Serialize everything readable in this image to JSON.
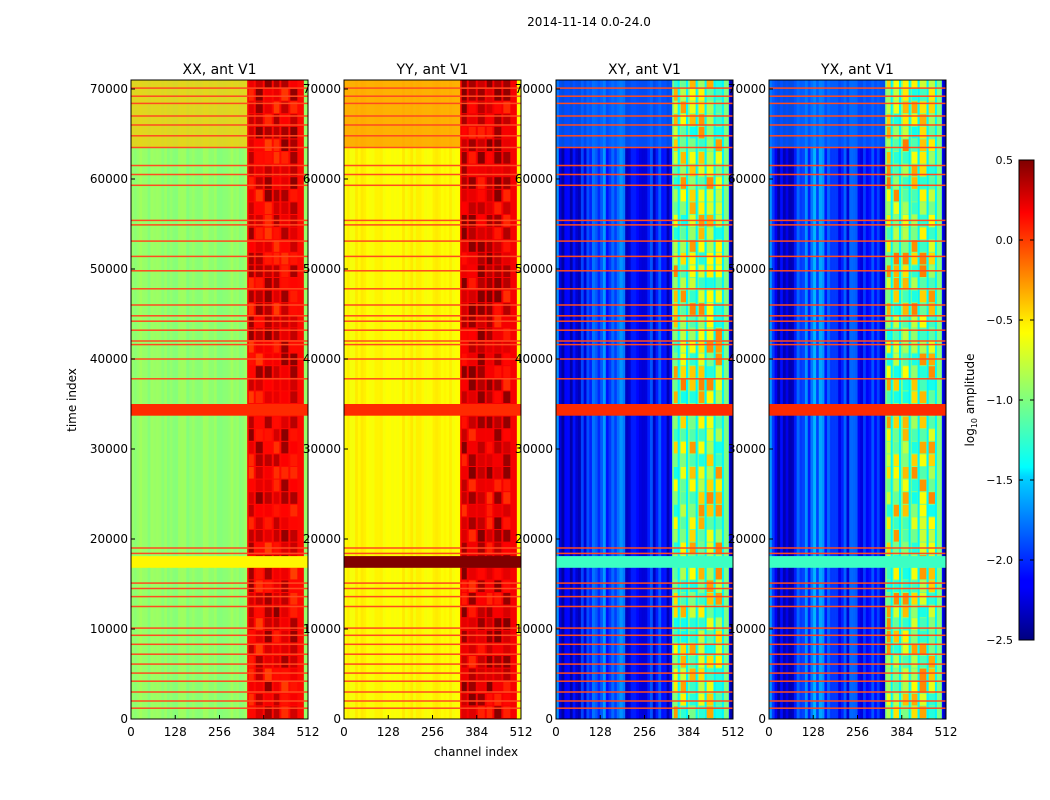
{
  "suptitle": "2014-11-14 0.0-24.0",
  "colors": {
    "frame": "#000000",
    "flag_line": "#ff4a1f",
    "flag_band": "#8b0000"
  },
  "chart_data": {
    "type": "heatmap",
    "colormap": "jet",
    "xlabel": "channel index",
    "ylabel": "time index",
    "xlim": [
      0,
      512
    ],
    "ylim": [
      0,
      71000
    ],
    "xticks": [
      "0",
      "128",
      "256",
      "384",
      "512"
    ],
    "yticks": [
      "0",
      "10000",
      "20000",
      "30000",
      "40000",
      "50000",
      "60000",
      "70000"
    ],
    "colorbar": {
      "label_main": "log",
      "label_sub": "10",
      "label_rest": " amplitude",
      "range": [
        -2.5,
        0.5
      ],
      "ticks": [
        "0.5",
        "0.0",
        "−0.5",
        "−1.0",
        "−1.5",
        "−2.0",
        "−2.5"
      ]
    },
    "flagged_time_rows": [
      1200,
      2000,
      3000,
      4200,
      5100,
      6100,
      7200,
      8300,
      9300,
      10100,
      12500,
      13600,
      14500,
      15100,
      18400,
      19000,
      37800,
      40000,
      41600,
      42000,
      43200,
      44200,
      44800,
      46000,
      47800,
      49800,
      51400,
      53100,
      54900,
      55400,
      59300,
      60500,
      61500,
      63500,
      64800,
      66000,
      67000,
      68400,
      69200,
      70100
    ],
    "flagged_bands": [
      [
        16800,
        18100
      ],
      [
        33700,
        35000
      ]
    ],
    "panels": [
      {
        "title": "XX, ant V1",
        "base_value": -0.95,
        "strip_amplitude": 0.06,
        "band_value": 0.1,
        "band_cells": "dense",
        "low_region_value": -0.95,
        "top_region_value": -0.45,
        "flag_band_value": -0.6
      },
      {
        "title": "YY, ant V1",
        "base_value": -0.6,
        "strip_amplitude": 0.06,
        "band_value": 0.15,
        "band_cells": "dense",
        "low_region_value": -0.6,
        "top_region_value": -0.3,
        "flag_band_value": 0.5
      },
      {
        "title": "XY, ant V1",
        "base_value": -2.1,
        "strip_amplitude": 0.35,
        "band_value": -1.0,
        "band_cells": "cells",
        "low_region_value": -2.25,
        "top_region_value": -1.8,
        "flag_band_value": -1.2
      },
      {
        "title": "YX, ant V1",
        "base_value": -2.1,
        "strip_amplitude": 0.35,
        "band_value": -1.0,
        "band_cells": "cells",
        "low_region_value": -2.25,
        "top_region_value": -1.8,
        "flag_band_value": -1.2
      }
    ]
  }
}
